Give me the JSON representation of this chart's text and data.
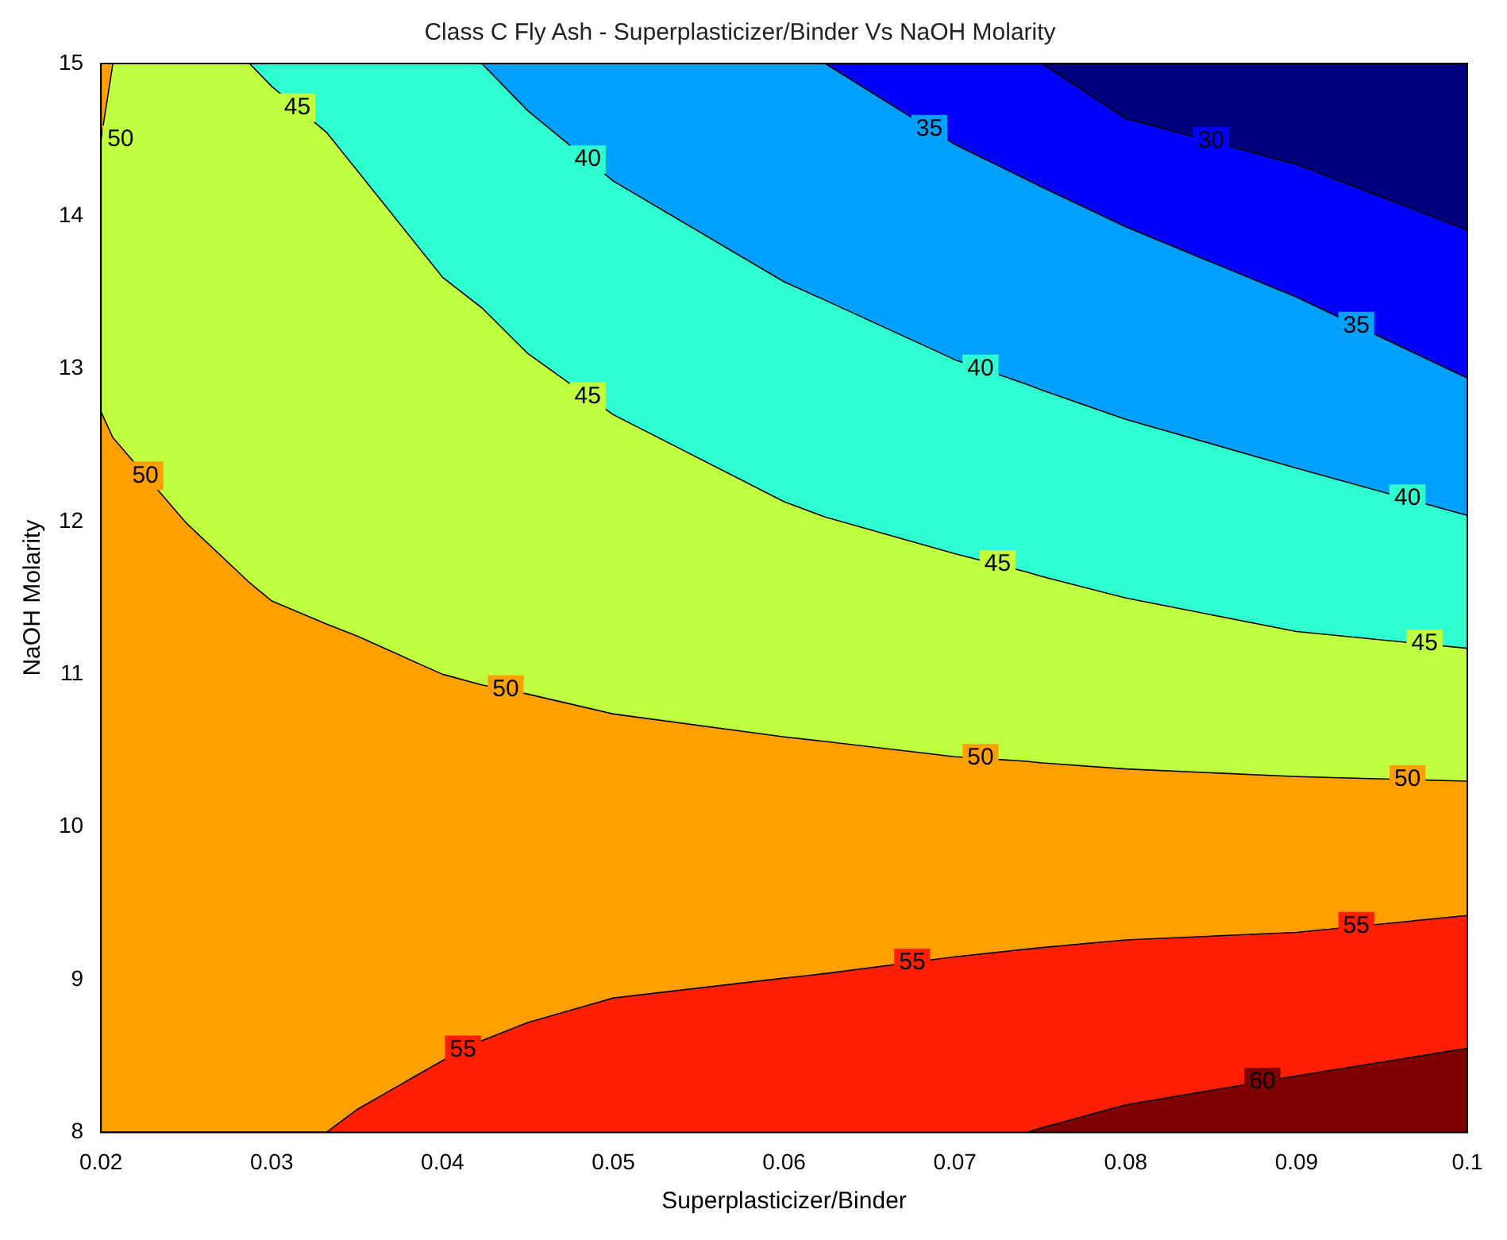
{
  "chart_data": {
    "type": "area",
    "title": "Class C Fly Ash - Superplasticizer/Binder Vs NaOH Molarity",
    "xlabel": "Superplasticizer/Binder",
    "ylabel": "NaOH Molarity",
    "x": [
      0.02,
      0.0207,
      0.025,
      0.0287,
      0.03,
      0.0332,
      0.035,
      0.04,
      0.0423,
      0.045,
      0.05,
      0.06,
      0.0624,
      0.07,
      0.0742,
      0.0751,
      0.08,
      0.09,
      0.1
    ],
    "series": [
      {
        "color": "#7f0000",
        "values": [
          8,
          8,
          8,
          8,
          8,
          8,
          8,
          8,
          8,
          8,
          8,
          8,
          8,
          8,
          8,
          8.03,
          8.18,
          8.37,
          8.55
        ]
      },
      {
        "color": "#ff1f00",
        "values": [
          8,
          8,
          8,
          8,
          8,
          8,
          8.15,
          8.47,
          8.6,
          8.72,
          8.88,
          9.01,
          9.04,
          9.15,
          9.2,
          9.21,
          9.26,
          9.31,
          9.42
        ]
      },
      {
        "color": "#ff9f00",
        "values": [
          12.72,
          12.55,
          11.99,
          11.6,
          11.48,
          11.33,
          11.25,
          11.0,
          10.93,
          10.87,
          10.74,
          10.59,
          10.56,
          10.46,
          10.43,
          10.42,
          10.38,
          10.33,
          10.3
        ]
      },
      {
        "color": "#bfff3f",
        "values": [
          14.5,
          15,
          15,
          15,
          14.85,
          14.55,
          14.3,
          13.6,
          13.4,
          13.1,
          12.7,
          12.13,
          12.03,
          11.79,
          11.67,
          11.64,
          11.5,
          11.28,
          11.17
        ]
      },
      {
        "color": "#ff9f00",
        "x": [
          0.02,
          0.0207
        ],
        "values": [
          15,
          15
        ]
      },
      {
        "color": "#2fffd0",
        "x": [
          0.0287,
          0.03,
          0.0332,
          0.035,
          0.04,
          0.0423,
          0.045,
          0.05,
          0.06,
          0.0624,
          0.07,
          0.0742,
          0.0751,
          0.08,
          0.09,
          0.1
        ],
        "values": [
          15,
          15,
          15,
          15,
          15,
          15,
          14.69,
          14.23,
          13.57,
          13.45,
          13.06,
          12.9,
          12.86,
          12.67,
          12.35,
          12.04
        ]
      },
      {
        "color": "#00a0ff",
        "x": [
          0.0423,
          0.045,
          0.05,
          0.06,
          0.0624,
          0.07,
          0.0742,
          0.0751,
          0.08,
          0.09,
          0.1
        ],
        "values": [
          15,
          15,
          15,
          15,
          15,
          14.47,
          14.24,
          14.19,
          13.93,
          13.47,
          12.94
        ]
      },
      {
        "color": "#0000ff",
        "x": [
          0.0624,
          0.07,
          0.0742,
          0.0751,
          0.08,
          0.09,
          0.1
        ],
        "values": [
          15,
          15,
          15,
          15,
          14.64,
          14.34,
          13.91
        ]
      },
      {
        "color": "#00007f",
        "x": [
          0.0751,
          0.08,
          0.09,
          0.1
        ],
        "values": [
          15,
          15,
          15,
          15
        ]
      }
    ],
    "xlim": [
      0.02,
      0.1
    ],
    "xticks": [
      0.02,
      0.03,
      0.04,
      0.05,
      0.06,
      0.07,
      0.08,
      0.09,
      0.1
    ],
    "ylim": [
      8,
      15
    ],
    "yticks": [
      8,
      9,
      10,
      11,
      12,
      13,
      14,
      15
    ],
    "annotations": [
      {
        "text": "50",
        "x": 0.02,
        "y": 14.5
      },
      {
        "text": "45",
        "x": 0.0315,
        "y": 14.71
      },
      {
        "text": "40",
        "x": 0.0485,
        "y": 14.37
      },
      {
        "text": "35",
        "x": 0.0685,
        "y": 14.57
      },
      {
        "text": "30",
        "x": 0.085,
        "y": 14.49
      },
      {
        "text": "40",
        "x": 0.0715,
        "y": 13.0
      },
      {
        "text": "35",
        "x": 0.0935,
        "y": 13.28
      },
      {
        "text": "45",
        "x": 0.0485,
        "y": 12.82
      },
      {
        "text": "40",
        "x": 0.0965,
        "y": 12.15
      },
      {
        "text": "45",
        "x": 0.0725,
        "y": 11.72
      },
      {
        "text": "45",
        "x": 0.0975,
        "y": 11.2
      },
      {
        "text": "50",
        "x": 0.0226,
        "y": 12.3
      },
      {
        "text": "50",
        "x": 0.0437,
        "y": 10.9
      },
      {
        "text": "50",
        "x": 0.0715,
        "y": 10.45
      },
      {
        "text": "50",
        "x": 0.0965,
        "y": 10.31
      },
      {
        "text": "55",
        "x": 0.0412,
        "y": 8.54
      },
      {
        "text": "55",
        "x": 0.0675,
        "y": 9.11
      },
      {
        "text": "55",
        "x": 0.0935,
        "y": 9.35
      },
      {
        "text": "60",
        "x": 0.088,
        "y": 8.33
      }
    ]
  }
}
